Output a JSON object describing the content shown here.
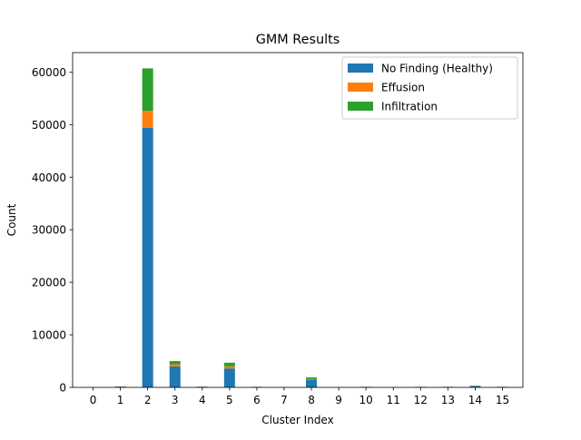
{
  "chart_data": {
    "type": "bar",
    "stacked": true,
    "title": "GMM Results",
    "xlabel": "Cluster Index",
    "ylabel": "Count",
    "ylim": [
      0,
      63700
    ],
    "yticks": [
      0,
      10000,
      20000,
      30000,
      40000,
      50000,
      60000
    ],
    "categories": [
      "0",
      "1",
      "2",
      "3",
      "4",
      "5",
      "6",
      "7",
      "8",
      "9",
      "10",
      "11",
      "12",
      "13",
      "14",
      "15"
    ],
    "legend_position": "top-right",
    "grid": false,
    "series": [
      {
        "name": "No Finding (Healthy)",
        "color": "#1f77b4",
        "values": [
          20,
          150,
          49400,
          4000,
          120,
          3600,
          100,
          20,
          1500,
          20,
          100,
          20,
          100,
          100,
          250,
          100
        ]
      },
      {
        "name": "Effusion",
        "color": "#ff7f0e",
        "values": [
          0,
          10,
          3200,
          400,
          10,
          400,
          5,
          0,
          100,
          0,
          5,
          0,
          5,
          5,
          20,
          5
        ]
      },
      {
        "name": "Infiltration",
        "color": "#2ca02c",
        "values": [
          0,
          20,
          8100,
          600,
          20,
          700,
          10,
          0,
          300,
          0,
          10,
          0,
          10,
          10,
          50,
          10
        ]
      }
    ]
  }
}
